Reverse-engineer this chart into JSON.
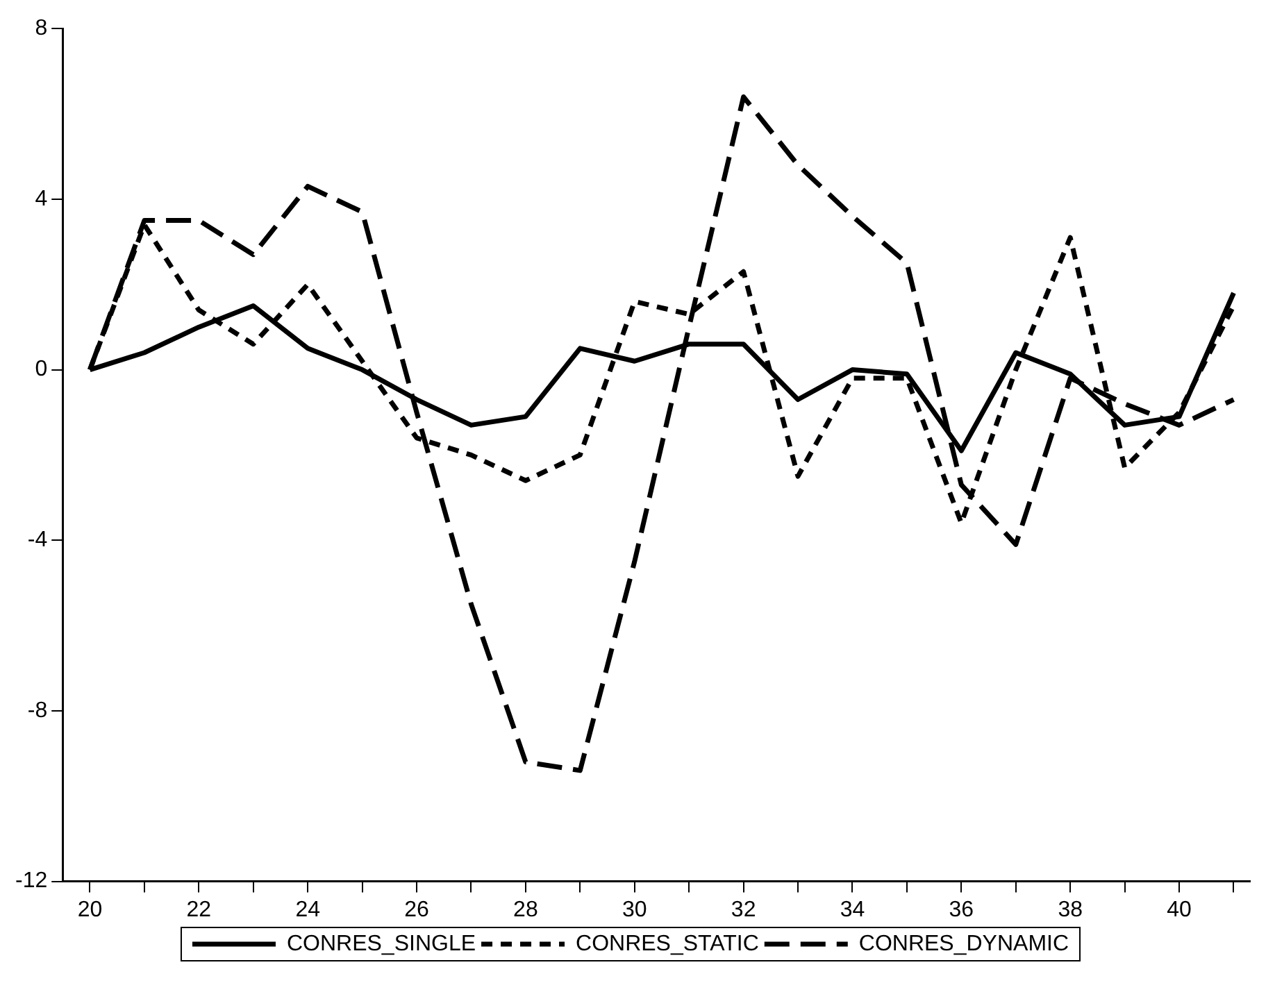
{
  "chart_data": {
    "type": "line",
    "x": [
      20,
      21,
      22,
      23,
      24,
      25,
      26,
      27,
      28,
      29,
      30,
      31,
      32,
      33,
      34,
      35,
      36,
      37,
      38,
      39,
      40,
      41
    ],
    "series": [
      {
        "name": "CONRES_SINGLE",
        "color": "#000000",
        "line_style": "solid",
        "values": [
          0,
          0.4,
          1.0,
          1.5,
          0.5,
          0,
          -0.7,
          -1.3,
          -1.1,
          0.5,
          0.2,
          0.6,
          0.6,
          -0.7,
          0,
          -0.1,
          -1.9,
          0.4,
          -0.1,
          -1.3,
          -1.1,
          1.8
        ]
      },
      {
        "name": "CONRES_STATIC",
        "color": "#000000",
        "line_style": "dotted",
        "values": [
          0,
          3.4,
          1.4,
          0.6,
          2.0,
          0.2,
          -1.6,
          -2.0,
          -2.6,
          -2.0,
          1.6,
          1.3,
          2.3,
          -2.5,
          -0.2,
          -0.2,
          -3.6,
          0,
          3.1,
          -2.3,
          -1.0,
          1.5
        ]
      },
      {
        "name": "CONRES_DYNAMIC",
        "color": "#000000",
        "line_style": "dashed",
        "values": [
          0,
          3.5,
          3.5,
          2.7,
          4.3,
          3.7,
          -1.0,
          -5.5,
          -9.2,
          -9.4,
          -4.5,
          1.0,
          6.4,
          4.8,
          3.6,
          2.5,
          -2.7,
          -4.1,
          -0.2,
          -0.8,
          -1.3,
          -0.7
        ]
      }
    ],
    "xlim": [
      19.5,
      41.3
    ],
    "xticks": [
      20,
      {
        "value": 21,
        "label": null
      },
      22,
      {
        "value": 23,
        "label": null
      },
      24,
      {
        "value": 25,
        "label": null
      },
      26,
      {
        "value": 27,
        "label": null
      },
      28,
      {
        "value": 29,
        "label": null
      },
      30,
      {
        "value": 31,
        "label": null
      },
      32,
      {
        "value": 33,
        "label": null
      },
      34,
      {
        "value": 35,
        "label": null
      },
      36,
      {
        "value": 37,
        "label": null
      },
      38,
      {
        "value": 39,
        "label": null
      },
      40,
      {
        "value": 41,
        "label": null
      }
    ],
    "ylim": [
      -12,
      8
    ],
    "yticks": [
      -12,
      -8,
      -4,
      0,
      4,
      8
    ],
    "grid": false,
    "legend": "bottom",
    "marker": "none"
  }
}
